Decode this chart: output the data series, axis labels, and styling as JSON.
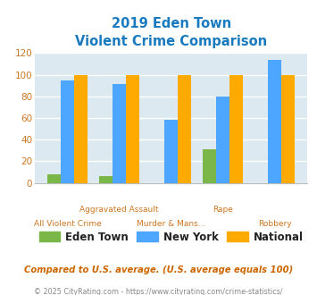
{
  "title_line1": "2019 Eden Town",
  "title_line2": "Violent Crime Comparison",
  "categories": [
    "All Violent Crime",
    "Aggravated Assault",
    "Murder & Mans...",
    "Rape",
    "Robbery"
  ],
  "eden_town": [
    8,
    6,
    0,
    31,
    0
  ],
  "new_york": [
    95,
    91,
    58,
    80,
    114
  ],
  "national": [
    100,
    100,
    100,
    100,
    100
  ],
  "eden_color": "#7ab648",
  "ny_color": "#4da6ff",
  "national_color": "#ffaa00",
  "ylim": [
    0,
    120
  ],
  "yticks": [
    0,
    20,
    40,
    60,
    80,
    100,
    120
  ],
  "plot_bg": "#dce9f0",
  "footer_text": "Compared to U.S. average. (U.S. average equals 100)",
  "credit_text": "© 2025 CityRating.com - https://www.cityrating.com/crime-statistics/",
  "title_color": "#1a7abf",
  "footer_color": "#cc6600",
  "credit_color": "#888888",
  "tick_color": "#cc7722",
  "grid_color": "#ffffff",
  "bar_width": 0.26,
  "xlabels_top": [
    "",
    "Aggravated Assault",
    "",
    "Rape",
    ""
  ],
  "xlabels_bottom": [
    "All Violent Crime",
    "",
    "Murder & Mans...",
    "",
    "Robbery"
  ],
  "legend_labels": [
    "Eden Town",
    "New York",
    "National"
  ]
}
